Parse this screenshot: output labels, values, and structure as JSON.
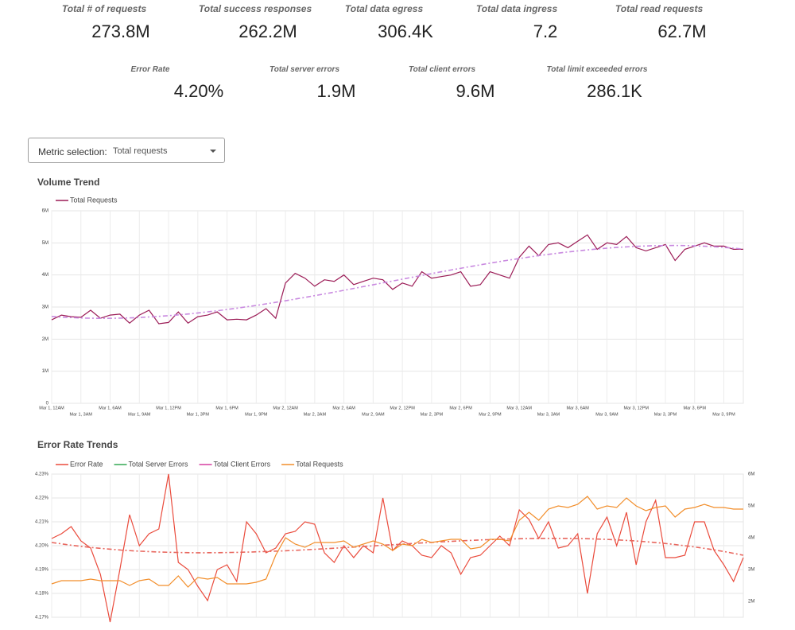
{
  "kpis": [
    {
      "label": "Total # of requests",
      "value": "273.8M"
    },
    {
      "label": "Total success responses",
      "value": "262.2M"
    },
    {
      "label": "Total data egress",
      "value": "306.4K"
    },
    {
      "label": "Total data ingress",
      "value": "7.2"
    },
    {
      "label": "Total read requests",
      "value": "62.7M"
    },
    {
      "label": "Error Rate",
      "value": "4.20%"
    },
    {
      "label": "Total server errors",
      "value": "1.9M"
    },
    {
      "label": "Total client errors",
      "value": "9.6M"
    },
    {
      "label": "Total limit exceeded errors",
      "value": "286.1K"
    }
  ],
  "dropdown": {
    "label": "Metric selection:",
    "value": "Total requests"
  },
  "chart_data": [
    {
      "type": "line",
      "title": "Volume Trend",
      "categories": [
        "Mar 1, 12AM",
        null,
        null,
        "Mar 1, 3AM",
        null,
        null,
        "Mar 1, 6AM",
        null,
        null,
        "Mar 1, 9AM",
        null,
        null,
        "Mar 1, 12PM",
        null,
        null,
        "Mar 1, 3PM",
        null,
        null,
        "Mar 1, 6PM",
        null,
        null,
        "Mar 1, 9PM",
        null,
        null,
        "Mar 2, 12AM",
        null,
        null,
        "Mar 2, 3AM",
        null,
        null,
        "Mar 2, 6AM",
        null,
        null,
        "Mar 2, 9AM",
        null,
        null,
        "Mar 2, 12PM",
        null,
        null,
        "Mar 2, 3PM",
        null,
        null,
        "Mar 2, 6PM",
        null,
        null,
        "Mar 2, 9PM",
        null,
        null,
        "Mar 3, 12AM",
        null,
        null,
        "Mar 3, 3AM",
        null,
        null,
        "Mar 3, 6AM",
        null,
        null,
        "Mar 3, 9AM",
        null,
        null,
        "Mar 3, 12PM",
        null,
        null,
        "Mar 3, 3PM",
        null,
        null,
        "Mar 3, 6PM",
        null,
        null,
        "Mar 3, 9PM",
        null,
        null
      ],
      "series": [
        {
          "name": "Total Requests",
          "color": "#9b1b56",
          "trendline": true,
          "trend_color": "#c98ae0",
          "values": [
            2600000,
            2750000,
            2700000,
            2680000,
            2900000,
            2650000,
            2750000,
            2780000,
            2500000,
            2750000,
            2900000,
            2480000,
            2520000,
            2850000,
            2500000,
            2700000,
            2750000,
            2850000,
            2600000,
            2620000,
            2600000,
            2750000,
            2950000,
            2650000,
            3750000,
            4050000,
            3900000,
            3650000,
            3850000,
            3800000,
            4000000,
            3700000,
            3800000,
            3900000,
            3850000,
            3550000,
            3750000,
            3650000,
            4100000,
            3900000,
            3950000,
            4000000,
            4100000,
            3650000,
            3700000,
            4100000,
            4000000,
            3900000,
            4550000,
            4900000,
            4600000,
            4950000,
            5000000,
            4850000,
            5050000,
            5250000,
            4800000,
            5000000,
            4950000,
            5200000,
            4850000,
            4750000,
            4850000,
            4950000,
            4450000,
            4800000,
            4900000,
            5000000,
            4900000,
            4900000,
            4800000,
            4800000
          ]
        }
      ],
      "ylim": [
        0,
        6000000
      ],
      "yticks": [
        0,
        {
          "value": 1000000,
          "label": "1M"
        },
        {
          "value": 2000000,
          "label": "2M"
        },
        {
          "value": 3000000,
          "label": "3M"
        },
        {
          "value": 4000000,
          "label": "4M"
        },
        {
          "value": 5000000,
          "label": "5M"
        },
        {
          "value": 6000000,
          "label": "6M"
        }
      ],
      "grid": true,
      "legend": "top-left"
    },
    {
      "type": "line",
      "title": "Error Rate Trends",
      "series": [
        {
          "name": "Error Rate",
          "color": "#ea4b3c",
          "trendline": true,
          "trend_color": "#e8675e",
          "values": [
            4.203,
            4.205,
            4.208,
            4.202,
            4.199,
            4.188,
            4.168,
            4.19,
            4.213,
            4.2,
            4.205,
            4.207,
            4.23,
            4.193,
            4.19,
            4.183,
            4.177,
            4.19,
            4.192,
            4.185,
            4.21,
            4.205,
            4.197,
            4.199,
            4.205,
            4.206,
            4.21,
            4.209,
            4.197,
            4.193,
            4.2,
            4.195,
            4.2,
            4.197,
            4.22,
            4.198,
            4.202,
            4.2,
            4.196,
            4.195,
            4.2,
            4.197,
            4.188,
            4.195,
            4.196,
            4.2,
            4.204,
            4.2,
            4.215,
            4.211,
            4.203,
            4.21,
            4.199,
            4.2,
            4.205,
            4.18,
            4.205,
            4.212,
            4.2,
            4.214,
            4.192,
            4.21,
            4.219,
            4.195,
            4.195,
            4.196,
            4.21,
            4.21,
            4.198,
            4.192,
            4.185,
            4.195
          ]
        },
        {
          "name": "Total Server Errors",
          "color": "#34a853",
          "values": [
            null,
            null,
            null,
            null,
            null,
            null,
            null,
            null,
            null,
            null,
            null,
            null,
            null,
            null,
            null,
            null,
            null,
            null,
            null,
            null,
            null,
            null,
            null,
            null,
            null,
            null,
            null,
            null,
            null,
            null,
            null,
            null,
            null,
            null,
            null,
            null,
            null,
            null,
            null,
            null,
            null,
            null,
            null,
            null,
            null,
            null,
            null,
            null,
            null,
            null,
            null,
            null,
            null,
            null,
            null,
            null,
            null,
            null,
            null,
            null,
            null,
            null,
            null,
            null,
            null,
            null,
            null,
            null,
            null,
            null,
            null,
            null
          ]
        },
        {
          "name": "Total Client Errors",
          "color": "#d63fa0",
          "values": [
            null,
            null,
            null,
            null,
            null,
            null,
            null,
            null,
            null,
            null,
            null,
            null,
            null,
            null,
            null,
            null,
            null,
            null,
            null,
            null,
            null,
            null,
            null,
            null,
            null,
            null,
            null,
            null,
            null,
            null,
            null,
            null,
            null,
            null,
            null,
            null,
            null,
            null,
            null,
            null,
            null,
            null,
            null,
            null,
            null,
            null,
            null,
            null,
            null,
            null,
            null,
            null,
            null,
            null,
            null,
            null,
            null,
            null,
            null,
            null,
            null,
            null,
            null,
            null,
            null,
            null,
            null,
            null,
            null,
            null,
            null,
            null
          ]
        },
        {
          "name": "Total Requests",
          "color": "#f28e2b",
          "axis": "y2",
          "values": [
            2550000,
            2650000,
            2650000,
            2650000,
            2700000,
            2650000,
            2650000,
            2650000,
            2500000,
            2650000,
            2700000,
            2500000,
            2500000,
            2800000,
            2450000,
            2750000,
            2700000,
            2750000,
            2550000,
            2550000,
            2550000,
            2600000,
            2700000,
            3450000,
            4000000,
            3800000,
            3700000,
            3850000,
            3850000,
            3850000,
            3900000,
            3700000,
            3800000,
            3900000,
            3800000,
            3600000,
            3800000,
            3750000,
            3950000,
            3850000,
            3900000,
            3950000,
            3950000,
            3650000,
            3700000,
            3950000,
            3950000,
            3900000,
            4550000,
            4800000,
            4550000,
            4900000,
            5000000,
            4950000,
            5050000,
            5300000,
            4900000,
            5000000,
            4950000,
            5250000,
            5000000,
            4850000,
            4950000,
            5000000,
            4650000,
            4900000,
            4950000,
            5050000,
            4950000,
            4950000,
            4900000,
            4900000
          ]
        }
      ],
      "ylim": [
        4.17,
        4.23
      ],
      "yticks": [
        {
          "value": 4.17,
          "label": "4.17%"
        },
        {
          "value": 4.18,
          "label": "4.18%"
        },
        {
          "value": 4.19,
          "label": "4.19%"
        },
        {
          "value": 4.2,
          "label": "4.20%"
        },
        {
          "value": 4.21,
          "label": "4.21%"
        },
        {
          "value": 4.22,
          "label": "4.22%"
        },
        {
          "value": 4.23,
          "label": "4.23%"
        }
      ],
      "y2lim": [
        1500000,
        6000000
      ],
      "y2ticks": [
        {
          "value": 2000000,
          "label": "2M"
        },
        {
          "value": 3000000,
          "label": "3M"
        },
        {
          "value": 4000000,
          "label": "4M"
        },
        {
          "value": 5000000,
          "label": "5M"
        },
        {
          "value": 6000000,
          "label": "6M"
        }
      ],
      "grid": true,
      "legend": "top-left"
    }
  ]
}
